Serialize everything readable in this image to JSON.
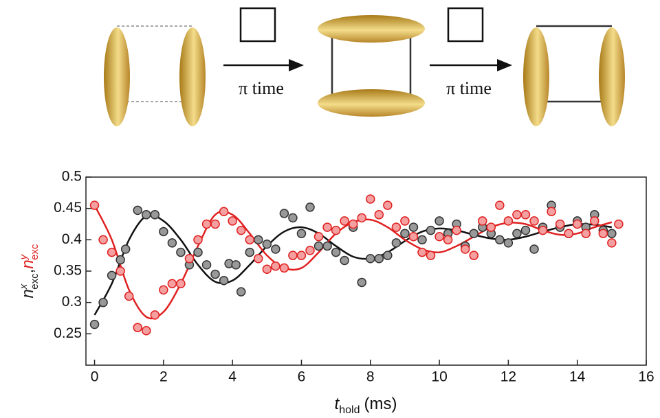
{
  "diagram": {
    "arrow_labels": [
      "π time",
      "π time"
    ]
  },
  "chart_data": {
    "type": "scatter",
    "ylabel_parts": [
      {
        "base": "n",
        "sup": "x",
        "sub": "exc",
        "tail": ",",
        "color": "#222222"
      },
      {
        "base": "n",
        "sup": "y",
        "sub": "exc",
        "color": "#e02020"
      }
    ],
    "xlabel_parts": {
      "base": "t",
      "sub": "hold",
      "tail": "(ms)"
    },
    "xlim": [
      -0.25,
      16
    ],
    "ylim": [
      0.2,
      0.5
    ],
    "xticks": [
      0,
      2,
      4,
      6,
      8,
      10,
      12,
      14,
      16
    ],
    "yticks": [
      0.25,
      0.3,
      0.35,
      0.4,
      0.45,
      0.5
    ],
    "series": [
      {
        "style": "points",
        "color": "#999999",
        "edge": "#333333",
        "x": [
          0,
          0.25,
          0.5,
          0.75,
          0.9,
          1.25,
          1.5,
          1.75,
          2,
          2.25,
          2.5,
          2.75,
          3,
          3.25,
          3.5,
          3.75,
          3.9,
          4.1,
          4.25,
          4.5,
          4.75,
          5,
          5.25,
          5.5,
          5.75,
          6,
          6.25,
          6.5,
          6.75,
          7,
          7.25,
          7.5,
          7.75,
          8,
          8.25,
          8.5,
          8.75,
          9,
          9.25,
          9.5,
          9.75,
          10,
          10.25,
          10.5,
          10.75,
          11,
          11.25,
          11.5,
          11.75,
          12,
          12.25,
          12.5,
          12.75,
          13,
          13.25,
          13.5,
          13.75,
          14,
          14.25,
          14.5,
          14.75,
          15
        ],
        "values": [
          0.265,
          0.3,
          0.343,
          0.368,
          0.385,
          0.447,
          0.44,
          0.44,
          0.413,
          0.395,
          0.38,
          0.36,
          0.38,
          0.36,
          0.345,
          0.335,
          0.362,
          0.36,
          0.317,
          0.38,
          0.4,
          0.393,
          0.385,
          0.442,
          0.435,
          0.41,
          0.452,
          0.39,
          0.39,
          0.38,
          0.367,
          0.42,
          0.332,
          0.37,
          0.37,
          0.375,
          0.395,
          0.41,
          0.42,
          0.4,
          0.415,
          0.43,
          0.41,
          0.425,
          0.39,
          0.41,
          0.42,
          0.41,
          0.4,
          0.395,
          0.41,
          0.415,
          0.385,
          0.42,
          0.455,
          0.42,
          0.41,
          0.43,
          0.42,
          0.44,
          0.415,
          0.41
        ]
      },
      {
        "style": "points",
        "color": "#f4a0a0",
        "edge": "#e02020",
        "x": [
          0,
          0.25,
          0.5,
          0.75,
          1,
          1.25,
          1.5,
          1.75,
          2,
          2.25,
          2.5,
          2.75,
          3,
          3.25,
          3.5,
          3.75,
          4,
          4.25,
          4.5,
          4.75,
          5,
          5.25,
          5.5,
          5.75,
          6,
          6.25,
          6.5,
          6.75,
          7,
          7.25,
          7.5,
          7.75,
          8,
          8.25,
          8.5,
          8.75,
          9,
          9.25,
          9.5,
          9.75,
          10,
          10.25,
          10.5,
          10.75,
          11,
          11.25,
          11.5,
          11.75,
          12,
          12.25,
          12.5,
          12.75,
          13,
          13.25,
          13.5,
          13.75,
          14,
          14.25,
          14.5,
          14.75,
          15,
          15.2
        ],
        "values": [
          0.455,
          0.4,
          0.38,
          0.35,
          0.31,
          0.26,
          0.255,
          0.28,
          0.32,
          0.33,
          0.33,
          0.37,
          0.4,
          0.425,
          0.425,
          0.445,
          0.43,
          0.415,
          0.4,
          0.37,
          0.353,
          0.358,
          0.355,
          0.375,
          0.375,
          0.383,
          0.405,
          0.42,
          0.415,
          0.43,
          0.425,
          0.435,
          0.465,
          0.44,
          0.455,
          0.42,
          0.43,
          0.405,
          0.38,
          0.375,
          0.405,
          0.4,
          0.415,
          0.385,
          0.375,
          0.43,
          0.42,
          0.455,
          0.43,
          0.44,
          0.44,
          0.43,
          0.415,
          0.445,
          0.425,
          0.41,
          0.425,
          0.41,
          0.43,
          0.41,
          0.395,
          0.425
        ]
      },
      {
        "style": "line",
        "color": "#111111",
        "x": [
          0,
          0.5,
          1,
          1.5,
          2,
          2.5,
          3,
          3.5,
          4,
          4.5,
          5,
          5.5,
          6,
          6.5,
          7,
          7.5,
          8,
          8.5,
          9,
          9.5,
          10,
          10.5,
          11,
          11.5,
          12,
          12.5,
          13,
          13.5,
          14,
          14.5,
          15
        ],
        "values": [
          0.28,
          0.33,
          0.4,
          0.438,
          0.43,
          0.4,
          0.36,
          0.333,
          0.335,
          0.36,
          0.39,
          0.413,
          0.42,
          0.41,
          0.39,
          0.373,
          0.37,
          0.38,
          0.398,
          0.413,
          0.418,
          0.415,
          0.408,
          0.402,
          0.4,
          0.405,
          0.413,
          0.42,
          0.425,
          0.424,
          0.42
        ]
      },
      {
        "style": "line",
        "color": "#e02020",
        "x": [
          0,
          0.5,
          1,
          1.5,
          2,
          2.5,
          3,
          3.5,
          4,
          4.5,
          5,
          5.5,
          6,
          6.5,
          7,
          7.5,
          8,
          8.5,
          9,
          9.5,
          10,
          10.5,
          11,
          11.5,
          12,
          12.5,
          13,
          13.5,
          14,
          14.5,
          15
        ],
        "values": [
          0.455,
          0.4,
          0.32,
          0.277,
          0.285,
          0.33,
          0.39,
          0.44,
          0.44,
          0.41,
          0.375,
          0.355,
          0.355,
          0.38,
          0.41,
          0.428,
          0.432,
          0.42,
          0.4,
          0.385,
          0.38,
          0.39,
          0.405,
          0.42,
          0.427,
          0.425,
          0.415,
          0.408,
          0.41,
          0.42,
          0.428
        ]
      }
    ]
  }
}
